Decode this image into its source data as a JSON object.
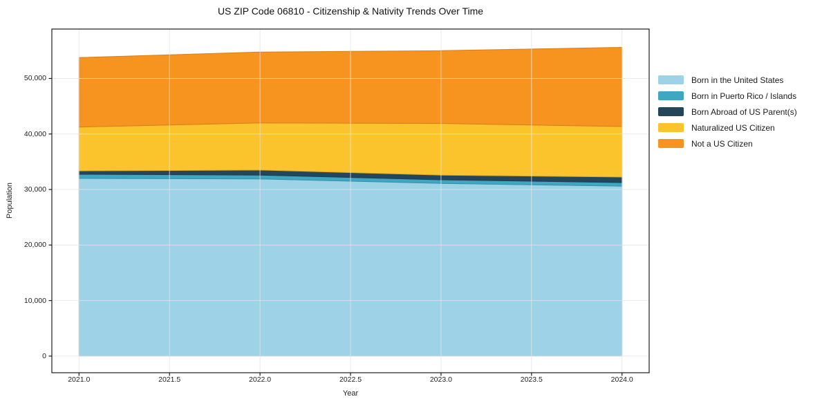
{
  "chart_data": {
    "type": "area",
    "stacked": true,
    "title": "US ZIP Code 06810 - Citizenship & Nativity Trends Over Time",
    "xlabel": "Year",
    "ylabel": "Population",
    "x": [
      2021,
      2022,
      2023,
      2024
    ],
    "series": [
      {
        "name": "Born in the United States",
        "color": "#9ED2E7",
        "values": [
          32000,
          31900,
          31100,
          30600
        ]
      },
      {
        "name": "Born in Puerto Rico / Islands",
        "color": "#3FA7C2",
        "values": [
          750,
          700,
          650,
          650
        ]
      },
      {
        "name": "Born Abroad of US Parent(s)",
        "color": "#24465A",
        "values": [
          600,
          900,
          850,
          1000
        ]
      },
      {
        "name": "Naturalized US Citizen",
        "color": "#FCC42C",
        "values": [
          7900,
          8500,
          9300,
          9100
        ]
      },
      {
        "name": "Not a US Citizen",
        "color": "#F7941F",
        "values": [
          12500,
          12750,
          13100,
          14250
        ]
      }
    ],
    "xticks": [
      2021.0,
      2021.5,
      2022.0,
      2022.5,
      2023.0,
      2023.5,
      2024.0
    ],
    "xtick_labels": [
      "2021.0",
      "2021.5",
      "2022.0",
      "2022.5",
      "2023.0",
      "2023.5",
      "2024.0"
    ],
    "yticks": [
      0,
      10000,
      20000,
      30000,
      40000,
      50000
    ],
    "ytick_labels": [
      "0",
      "10,000",
      "20,000",
      "30,000",
      "40,000",
      "50,000"
    ],
    "xlim": [
      2020.85,
      2024.15
    ],
    "ylim": [
      -3000,
      58900
    ],
    "grid": true,
    "grid_color": "#e4e4e4",
    "spine_color": "#1a1a1a",
    "legend_position": "right-outside"
  }
}
